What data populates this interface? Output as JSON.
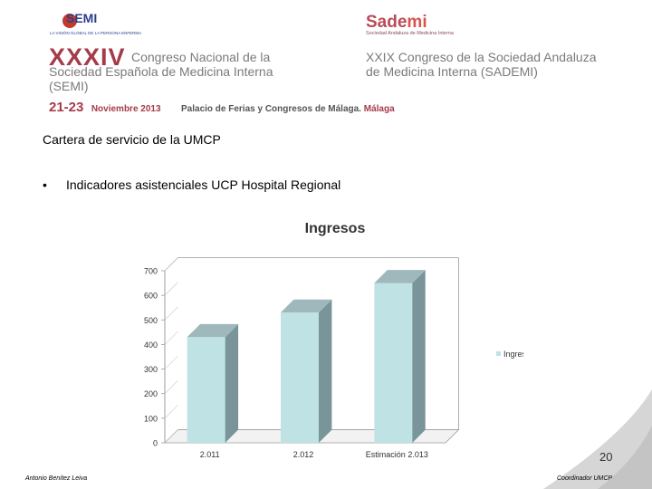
{
  "header": {
    "semi_logo_text": "SEMI",
    "semi_tagline": "LA VISIÓN GLOBAL DE LA PERSONA ENFERMA",
    "sademi_logo_text": "Sade",
    "sademi_logo_mi": "mi",
    "sademi_subtitle": "Sociedad Andaluza de Medicina Interna",
    "roman_numeral": "XXXIV",
    "congress1_line1": "Congreso Nacional de la",
    "congress1_line2": "Sociedad Española de Medicina Interna",
    "congress1_line3": "(SEMI)",
    "congress2_line1": "XXIX Congreso de la Sociedad Andaluza",
    "congress2_line2": "de Medicina Interna (SADEMI)",
    "dates": "21-23",
    "month": "Noviembre 2013",
    "venue": "Palacio de Ferias y Congresos de Málaga.",
    "city": "Málaga"
  },
  "slide": {
    "title": "Cartera de servicio de la UMCP",
    "bullet_symbol": "•",
    "bullet_text": "Indicadores asistenciales UCP Hospital Regional"
  },
  "chart_data": {
    "type": "bar",
    "title": "Ingresos",
    "categories": [
      "2.011",
      "2.012",
      "Estimación 2.013"
    ],
    "series": [
      {
        "name": "Ingresos",
        "values": [
          430,
          530,
          650
        ]
      }
    ],
    "ylim": [
      0,
      700
    ],
    "yticks": [
      0,
      100,
      200,
      300,
      400,
      500,
      600,
      700
    ],
    "legend_position": "right",
    "grid": false,
    "colors": {
      "bar_front": "#bfe2e4",
      "bar_side": "#7a9599",
      "bar_top": "#9fb8bb"
    }
  },
  "footer": {
    "author": "Antonio Benítez Leiva",
    "role": "Coordinador UMCP",
    "page_number": "20"
  }
}
